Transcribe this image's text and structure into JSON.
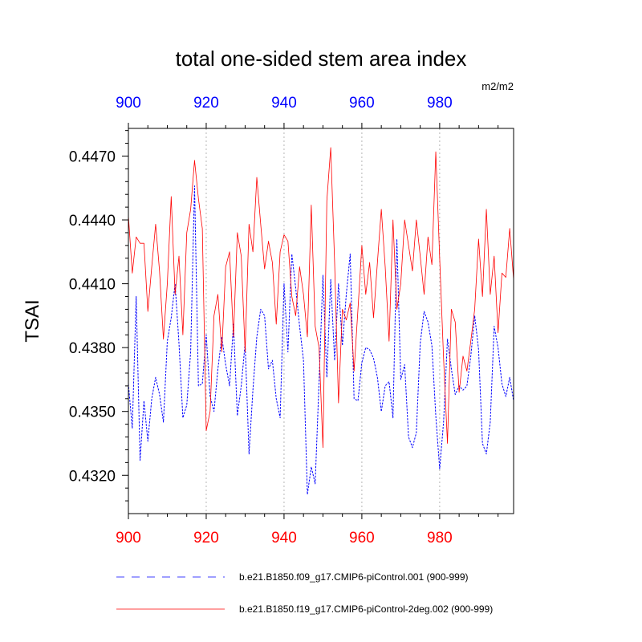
{
  "chart_data": {
    "type": "line",
    "title": "total one-sided stem area index",
    "units": "m2/m2",
    "ylabel": "TSAI",
    "xlabel": "",
    "xlim": [
      900,
      999
    ],
    "ylim": [
      0.4302,
      0.4483
    ],
    "yticks": [
      0.432,
      0.435,
      0.438,
      0.441,
      0.444,
      0.447
    ],
    "ytick_labels": [
      "0.4320",
      "0.4350",
      "0.4380",
      "0.4410",
      "0.4440",
      "0.4470"
    ],
    "xticks": [
      900,
      920,
      940,
      960,
      980
    ],
    "xtick_labels": [
      "900",
      "920",
      "940",
      "960",
      "980"
    ],
    "top_xtick_labels": [
      "900",
      "920",
      "940",
      "960",
      "980"
    ],
    "grid": "vertical dotted at major x ticks",
    "colors": {
      "bottom_axis_labels": "#ff0000",
      "top_axis_labels": "#0000ff"
    },
    "series": [
      {
        "name": "b.e21.B1850.f09_g17.CMIP6-piControl.001 (900-999)",
        "color": "#0000ff",
        "style": "dashed",
        "x_start": 900,
        "values": [
          0.4363,
          0.4342,
          0.4404,
          0.4327,
          0.4355,
          0.4336,
          0.4356,
          0.4366,
          0.4358,
          0.4345,
          0.4383,
          0.4394,
          0.441,
          0.4382,
          0.4347,
          0.4353,
          0.4378,
          0.4456,
          0.4362,
          0.4363,
          0.4386,
          0.4357,
          0.435,
          0.437,
          0.4385,
          0.4372,
          0.4362,
          0.4391,
          0.4348,
          0.4362,
          0.4382,
          0.433,
          0.436,
          0.4385,
          0.4398,
          0.4395,
          0.437,
          0.4374,
          0.4356,
          0.4347,
          0.441,
          0.4378,
          0.4424,
          0.4408,
          0.439,
          0.4374,
          0.4311,
          0.4324,
          0.4316,
          0.4364,
          0.4414,
          0.4366,
          0.4412,
          0.4374,
          0.441,
          0.4381,
          0.4405,
          0.4424,
          0.4356,
          0.4355,
          0.4373,
          0.438,
          0.4379,
          0.4375,
          0.4366,
          0.435,
          0.4362,
          0.4364,
          0.4347,
          0.4431,
          0.4365,
          0.4372,
          0.4338,
          0.4333,
          0.434,
          0.4382,
          0.4397,
          0.4392,
          0.4381,
          0.4348,
          0.4323,
          0.4345,
          0.4384,
          0.437,
          0.4358,
          0.4362,
          0.436,
          0.4362,
          0.4376,
          0.4395,
          0.4379,
          0.4335,
          0.433,
          0.4345,
          0.439,
          0.438,
          0.4363,
          0.4357,
          0.4366,
          0.4355
        ]
      },
      {
        "name": "b.e21.B1850.f19_g17.CMIP6-piControl-2deg.002 (900-999)",
        "color": "#ff0000",
        "style": "solid",
        "x_start": 900,
        "values": [
          0.4442,
          0.4415,
          0.4432,
          0.4429,
          0.4429,
          0.4397,
          0.4418,
          0.4438,
          0.4416,
          0.4384,
          0.441,
          0.4451,
          0.4405,
          0.4423,
          0.4386,
          0.4434,
          0.4445,
          0.4468,
          0.445,
          0.4436,
          0.4341,
          0.435,
          0.4395,
          0.4405,
          0.4378,
          0.4418,
          0.4425,
          0.4385,
          0.4434,
          0.4423,
          0.4378,
          0.4438,
          0.4425,
          0.446,
          0.4438,
          0.4417,
          0.443,
          0.442,
          0.4391,
          0.4425,
          0.4433,
          0.443,
          0.4404,
          0.4395,
          0.4418,
          0.4405,
          0.4385,
          0.4447,
          0.439,
          0.438,
          0.4333,
          0.4449,
          0.4474,
          0.442,
          0.4354,
          0.4398,
          0.4393,
          0.4401,
          0.4369,
          0.4398,
          0.4428,
          0.4405,
          0.442,
          0.4394,
          0.442,
          0.4445,
          0.4418,
          0.4383,
          0.444,
          0.4398,
          0.441,
          0.444,
          0.4428,
          0.4416,
          0.444,
          0.4423,
          0.4405,
          0.4432,
          0.4419,
          0.4472,
          0.4422,
          0.4375,
          0.4335,
          0.4398,
          0.4392,
          0.4359,
          0.4376,
          0.4369,
          0.4383,
          0.4398,
          0.4431,
          0.4404,
          0.4445,
          0.4405,
          0.4423,
          0.4387,
          0.4415,
          0.4413,
          0.4436,
          0.4412
        ]
      }
    ]
  }
}
